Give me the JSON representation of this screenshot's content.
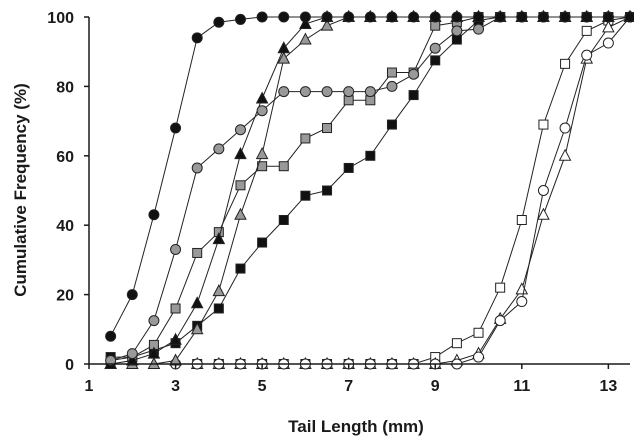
{
  "chart_data": {
    "type": "line",
    "title": "",
    "xlabel": "Tail Length (mm)",
    "ylabel": "Cumulative Frequency (%)",
    "xlim": [
      1,
      13.5
    ],
    "ylim": [
      0,
      100
    ],
    "xticks": [
      1,
      3,
      5,
      7,
      9,
      11,
      13
    ],
    "yticks": [
      0,
      20,
      40,
      60,
      80,
      100
    ],
    "grid": false,
    "legend": "none",
    "series": [
      {
        "marker": "circle",
        "fill": "#111111",
        "x": [
          1.5,
          2,
          2.5,
          3,
          3.5,
          4,
          4.5,
          5,
          5.5,
          6,
          6.5,
          7,
          7.5,
          8,
          8.5,
          9,
          9.5,
          10,
          10.5,
          11,
          11.5,
          12,
          12.5,
          13,
          13.5
        ],
        "y": [
          8,
          20,
          43,
          68,
          94,
          98.5,
          99.3,
          100,
          100,
          100,
          100,
          100,
          100,
          100,
          100,
          100,
          100,
          100,
          100,
          100,
          100,
          100,
          100,
          100,
          100
        ]
      },
      {
        "marker": "circle",
        "fill": "#999999",
        "x": [
          1.5,
          2,
          2.5,
          3,
          3.5,
          4,
          4.5,
          5,
          5.5,
          6,
          6.5,
          7,
          7.5,
          8,
          8.5,
          9,
          9.5,
          10,
          10.5,
          11,
          11.5,
          12,
          12.5,
          13,
          13.5
        ],
        "y": [
          1,
          3,
          12.5,
          33,
          56.5,
          62,
          67.5,
          73,
          78.5,
          78.5,
          78.5,
          78.5,
          78.5,
          80,
          83.5,
          91,
          96,
          96.5,
          100,
          100,
          100,
          100,
          100,
          100,
          100
        ]
      },
      {
        "marker": "triangle",
        "fill": "#111111",
        "x": [
          1.5,
          2,
          2.5,
          3,
          3.5,
          4,
          4.5,
          5,
          5.5,
          6,
          6.5,
          7,
          7.5,
          8,
          8.5,
          9,
          9.5,
          10,
          10.5,
          11,
          11.5,
          12,
          12.5,
          13,
          13.5
        ],
        "y": [
          0,
          1,
          3,
          7,
          17.5,
          36,
          60.5,
          76.5,
          91,
          98,
          100,
          100,
          100,
          100,
          100,
          100,
          100,
          100,
          100,
          100,
          100,
          100,
          100,
          100,
          100
        ]
      },
      {
        "marker": "triangle",
        "fill": "#999999",
        "x": [
          1.5,
          2,
          2.5,
          3,
          3.5,
          4,
          4.5,
          5,
          5.5,
          6,
          6.5,
          7,
          7.5,
          8,
          8.5,
          9,
          9.5,
          10,
          10.5,
          11,
          11.5,
          12,
          12.5,
          13,
          13.5
        ],
        "y": [
          0,
          0,
          0,
          1,
          10,
          21,
          43,
          60.5,
          88,
          93.5,
          97.5,
          100,
          100,
          100,
          100,
          100,
          100,
          100,
          100,
          100,
          100,
          100,
          100,
          100,
          100
        ]
      },
      {
        "marker": "square",
        "fill": "#999999",
        "x": [
          1.5,
          2,
          2.5,
          3,
          3.5,
          4,
          4.5,
          5,
          5.5,
          6,
          6.5,
          7,
          7.5,
          8,
          8.5,
          9,
          9.5,
          10,
          10.5,
          11,
          11.5,
          12,
          12.5,
          13,
          13.5
        ],
        "y": [
          1,
          2,
          5.5,
          16,
          32,
          38,
          51.5,
          57,
          57,
          65,
          68,
          76,
          76,
          84,
          84,
          97.5,
          98.5,
          100,
          100,
          100,
          100,
          100,
          100,
          100,
          100
        ]
      },
      {
        "marker": "square",
        "fill": "#111111",
        "x": [
          1.5,
          2,
          2.5,
          3,
          3.5,
          4,
          4.5,
          5,
          5.5,
          6,
          6.5,
          7,
          7.5,
          8,
          8.5,
          9,
          9.5,
          10,
          10.5,
          11,
          11.5,
          12,
          12.5,
          13,
          13.5
        ],
        "y": [
          2,
          2,
          4,
          6,
          11,
          16,
          27.5,
          35,
          41.5,
          48.5,
          50,
          56.5,
          60,
          69,
          77.5,
          87.5,
          93.5,
          99,
          100,
          100,
          100,
          100,
          100,
          100,
          100
        ]
      },
      {
        "marker": "square",
        "fill": "#ffffff",
        "x": [
          3.5,
          4,
          4.5,
          5,
          5.5,
          6,
          6.5,
          7,
          7.5,
          8,
          8.5,
          9,
          9.5,
          10,
          10.5,
          11,
          11.5,
          12,
          12.5,
          13,
          13.5
        ],
        "y": [
          0,
          0,
          0,
          0,
          0,
          0,
          0,
          0,
          0,
          0,
          0,
          2,
          6,
          9,
          22,
          41.5,
          69,
          86.5,
          96,
          99,
          100
        ]
      },
      {
        "marker": "triangle",
        "fill": "#ffffff",
        "x": [
          3.5,
          4,
          4.5,
          5,
          5.5,
          6,
          6.5,
          7,
          7.5,
          8,
          8.5,
          9,
          9.5,
          10,
          10.5,
          11,
          11.5,
          12,
          12.5,
          13,
          13.5
        ],
        "y": [
          0,
          0,
          0,
          0,
          0,
          0,
          0,
          0,
          0,
          0,
          0,
          0,
          1,
          3,
          13,
          21.5,
          43,
          60,
          88,
          97,
          100
        ]
      },
      {
        "marker": "circle",
        "fill": "#ffffff",
        "x": [
          3,
          3.5,
          4,
          4.5,
          5,
          5.5,
          6,
          6.5,
          7,
          7.5,
          8,
          8.5,
          9,
          9.5,
          10,
          10.5,
          11,
          11.5,
          12,
          12.5,
          13,
          13.5
        ],
        "y": [
          0,
          0,
          0,
          0,
          0,
          0,
          0,
          0,
          0,
          0,
          0,
          0,
          0,
          0,
          2,
          12.5,
          18,
          50,
          68,
          89,
          92.5,
          100
        ]
      }
    ]
  }
}
